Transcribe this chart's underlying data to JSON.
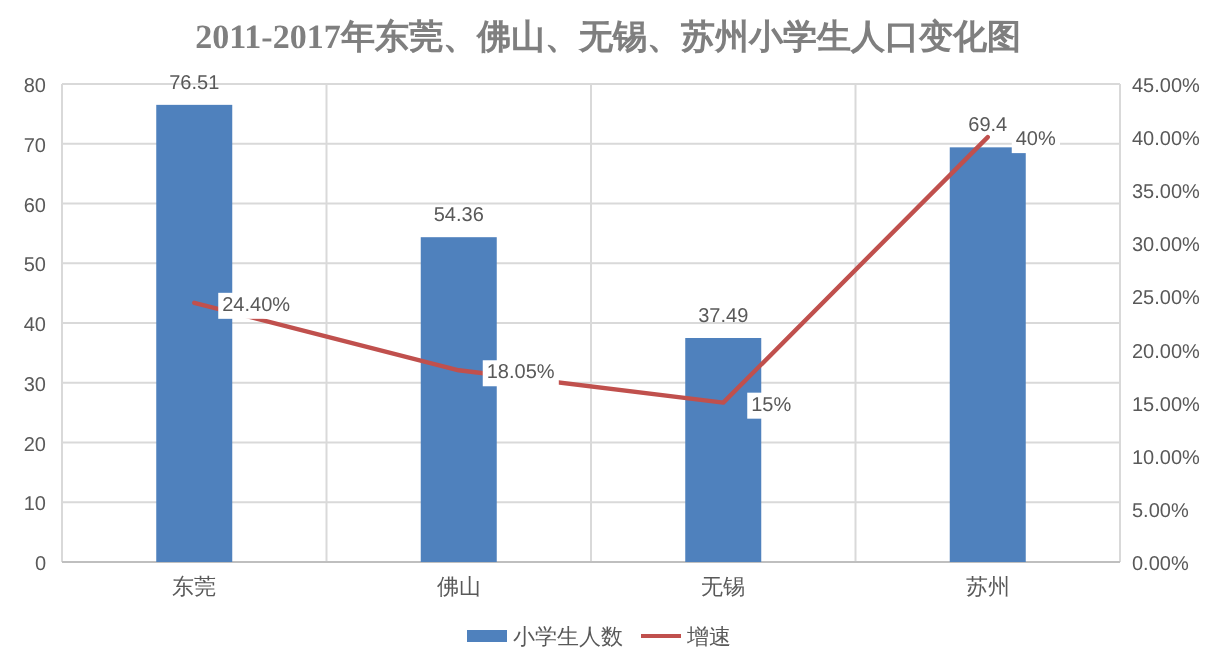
{
  "chart_data": {
    "type": "bar",
    "title": "2011-2017年东莞、佛山、无锡、苏州小学生人口变化图",
    "categories": [
      "东莞",
      "佛山",
      "无锡",
      "苏州"
    ],
    "series": [
      {
        "name": "小学生人数",
        "color": "#4f81bd",
        "values": [
          76.51,
          54.36,
          37.49,
          69.4
        ],
        "value_labels": [
          "76.51",
          "54.36",
          "37.49",
          "69.4"
        ]
      },
      {
        "name": "增速",
        "type": "line",
        "axis": "y2",
        "color": "#c0504d",
        "values": [
          24.4,
          18.05,
          15,
          40
        ],
        "value_labels": [
          "24.40%",
          "18.05%",
          "15%",
          "40%"
        ]
      }
    ],
    "ylim": [
      0,
      80
    ],
    "yticks": [
      0,
      10,
      20,
      30,
      40,
      50,
      60,
      70,
      80
    ],
    "y2lim": [
      0,
      45
    ],
    "y2ticks": [
      {
        "value": 0,
        "label": "0.00%"
      },
      {
        "value": 5,
        "label": "5.00%"
      },
      {
        "value": 10,
        "label": "10.00%"
      },
      {
        "value": 15,
        "label": "15.00%"
      },
      {
        "value": 20,
        "label": "20.00%"
      },
      {
        "value": 25,
        "label": "25.00%"
      },
      {
        "value": 30,
        "label": "30.00%"
      },
      {
        "value": 35,
        "label": "35.00%"
      },
      {
        "value": 40,
        "label": "40.00%"
      },
      {
        "value": 45,
        "label": "45.00%"
      }
    ],
    "grid": true,
    "legend": "bottom"
  }
}
